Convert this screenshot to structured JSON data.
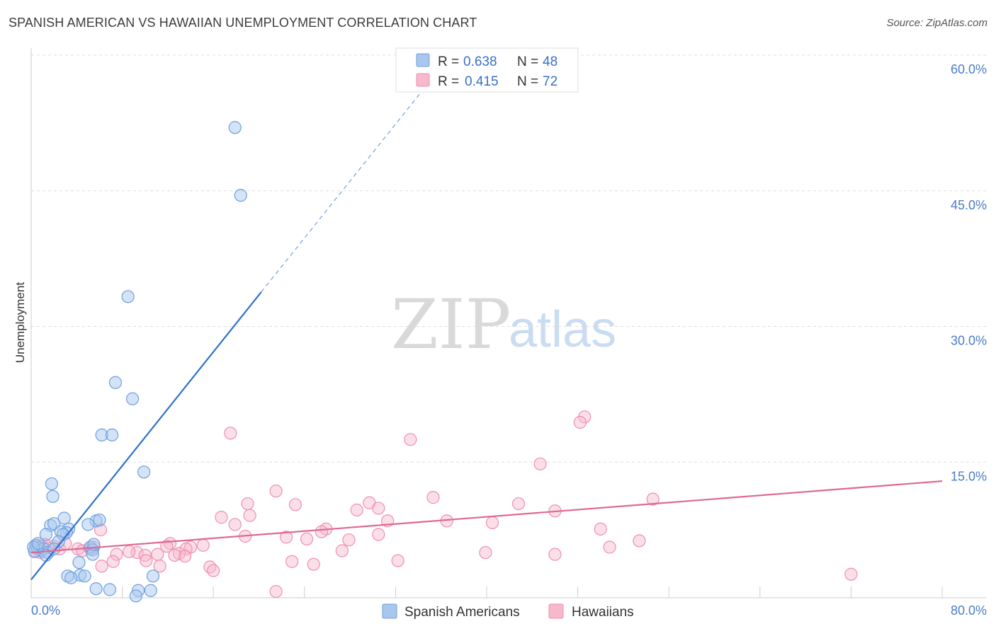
{
  "header": {
    "title": "SPANISH AMERICAN VS HAWAIIAN UNEMPLOYMENT CORRELATION CHART",
    "source": "Source: ZipAtlas.com"
  },
  "watermark": {
    "zip": "ZIP",
    "atlas": "atlas"
  },
  "legend_top": {
    "rows": [
      {
        "r_label": "R =",
        "r_value": "0.638",
        "n_label": "N =",
        "n_value": "48"
      },
      {
        "r_label": "R =",
        "r_value": "0.415",
        "n_label": "N =",
        "n_value": "72"
      }
    ]
  },
  "legend_bottom": {
    "items": [
      {
        "label": "Spanish Americans"
      },
      {
        "label": "Hawaiians"
      }
    ]
  },
  "colors": {
    "blue_fill": "#a9c7ee",
    "blue_stroke": "#6d9fe0",
    "blue_line": "#2f6fcf",
    "pink_fill": "#f6b8cb",
    "pink_stroke": "#ee8fae",
    "pink_line": "#e06890",
    "grid": "#dddddd"
  },
  "chart_data": {
    "type": "scatter",
    "title": "SPANISH AMERICAN VS HAWAIIAN UNEMPLOYMENT CORRELATION CHART",
    "xlabel": "",
    "ylabel": "Unemployment",
    "xlim": [
      0,
      80
    ],
    "ylim": [
      0,
      60
    ],
    "x_tick_labels": [
      "0.0%",
      "80.0%"
    ],
    "y_ticks": [
      15,
      30,
      45,
      60
    ],
    "y_tick_labels": [
      "15.0%",
      "30.0%",
      "45.0%",
      "60.0%"
    ],
    "grid": true,
    "legend_position": "top-center",
    "series": [
      {
        "name": "Spanish Americans",
        "R": 0.638,
        "N": 48,
        "trend": {
          "x0": 0,
          "y0": 2.0,
          "x1": 20.2,
          "y1": 33.8,
          "dashed_to_x": 34.5
        },
        "points": [
          [
            17.9,
            52.0
          ],
          [
            18.4,
            44.5
          ],
          [
            8.5,
            33.3
          ],
          [
            7.4,
            23.8
          ],
          [
            8.9,
            22.0
          ],
          [
            6.2,
            18.0
          ],
          [
            7.1,
            18.0
          ],
          [
            9.9,
            13.9
          ],
          [
            1.8,
            12.6
          ],
          [
            1.9,
            11.2
          ],
          [
            2.9,
            8.8
          ],
          [
            5.7,
            8.5
          ],
          [
            6.0,
            8.6
          ],
          [
            5.0,
            8.1
          ],
          [
            1.7,
            8.0
          ],
          [
            2.0,
            8.2
          ],
          [
            3.3,
            7.6
          ],
          [
            3.1,
            7.2
          ],
          [
            1.3,
            7.0
          ],
          [
            2.6,
            7.3
          ],
          [
            2.8,
            7.0
          ],
          [
            2.4,
            6.2
          ],
          [
            0.4,
            5.8
          ],
          [
            0.7,
            5.5
          ],
          [
            0.9,
            5.2
          ],
          [
            0.3,
            5.1
          ],
          [
            0.5,
            5.6
          ],
          [
            1.1,
            5.4
          ],
          [
            1.5,
            5.0
          ],
          [
            1.3,
            4.7
          ],
          [
            2.0,
            5.4
          ],
          [
            5.2,
            5.6
          ],
          [
            5.4,
            5.3
          ],
          [
            5.4,
            4.8
          ],
          [
            5.5,
            5.9
          ],
          [
            4.2,
            3.9
          ],
          [
            4.3,
            2.5
          ],
          [
            3.2,
            2.4
          ],
          [
            3.5,
            2.2
          ],
          [
            4.7,
            2.4
          ],
          [
            10.7,
            2.4
          ],
          [
            5.7,
            1.0
          ],
          [
            6.9,
            0.9
          ],
          [
            9.4,
            0.8
          ],
          [
            10.5,
            0.8
          ],
          [
            9.2,
            0.2
          ],
          [
            0.2,
            5.6
          ],
          [
            0.6,
            6.0
          ]
        ]
      },
      {
        "name": "Hawaiians",
        "R": 0.415,
        "N": 72,
        "trend": {
          "x0": 0,
          "y0": 5.0,
          "x1": 80,
          "y1": 12.9
        },
        "points": [
          [
            48.6,
            20.0
          ],
          [
            48.2,
            19.4
          ],
          [
            17.5,
            18.2
          ],
          [
            33.3,
            17.5
          ],
          [
            44.7,
            14.8
          ],
          [
            21.5,
            11.8
          ],
          [
            35.3,
            11.1
          ],
          [
            54.6,
            10.9
          ],
          [
            19.0,
            10.4
          ],
          [
            23.2,
            10.3
          ],
          [
            29.7,
            10.5
          ],
          [
            42.8,
            10.4
          ],
          [
            28.6,
            9.7
          ],
          [
            30.5,
            9.9
          ],
          [
            46.0,
            9.6
          ],
          [
            16.7,
            8.9
          ],
          [
            19.2,
            9.1
          ],
          [
            36.5,
            8.5
          ],
          [
            40.5,
            8.3
          ],
          [
            31.3,
            8.5
          ],
          [
            17.9,
            8.1
          ],
          [
            25.9,
            7.6
          ],
          [
            25.5,
            7.3
          ],
          [
            50.0,
            7.6
          ],
          [
            6.1,
            7.5
          ],
          [
            18.8,
            6.8
          ],
          [
            22.4,
            6.7
          ],
          [
            24.2,
            6.5
          ],
          [
            27.9,
            6.4
          ],
          [
            30.5,
            7.0
          ],
          [
            53.4,
            6.3
          ],
          [
            12.2,
            6.0
          ],
          [
            11.9,
            5.7
          ],
          [
            14.0,
            5.6
          ],
          [
            15.1,
            5.8
          ],
          [
            13.6,
            5.4
          ],
          [
            4.1,
            5.4
          ],
          [
            4.5,
            5.2
          ],
          [
            5.2,
            5.4
          ],
          [
            5.5,
            5.6
          ],
          [
            9.3,
            5.0
          ],
          [
            10.0,
            4.7
          ],
          [
            11.1,
            4.8
          ],
          [
            13.0,
            4.9
          ],
          [
            13.5,
            4.6
          ],
          [
            8.6,
            5.1
          ],
          [
            7.5,
            4.8
          ],
          [
            12.6,
            4.7
          ],
          [
            27.3,
            5.2
          ],
          [
            39.9,
            5.0
          ],
          [
            46.0,
            4.8
          ],
          [
            50.8,
            5.6
          ],
          [
            7.2,
            4.0
          ],
          [
            6.2,
            3.5
          ],
          [
            10.1,
            4.1
          ],
          [
            11.3,
            3.5
          ],
          [
            15.7,
            3.4
          ],
          [
            16.0,
            3.0
          ],
          [
            22.9,
            4.0
          ],
          [
            24.8,
            3.7
          ],
          [
            32.2,
            4.1
          ],
          [
            72.0,
            2.6
          ],
          [
            21.5,
            0.7
          ],
          [
            0.5,
            5.8
          ],
          [
            1.0,
            5.6
          ],
          [
            1.5,
            5.5
          ],
          [
            2.0,
            5.7
          ],
          [
            2.5,
            5.4
          ],
          [
            0.3,
            5.2
          ],
          [
            0.8,
            5.0
          ],
          [
            1.2,
            5.9
          ],
          [
            3.0,
            6.0
          ]
        ]
      }
    ]
  }
}
